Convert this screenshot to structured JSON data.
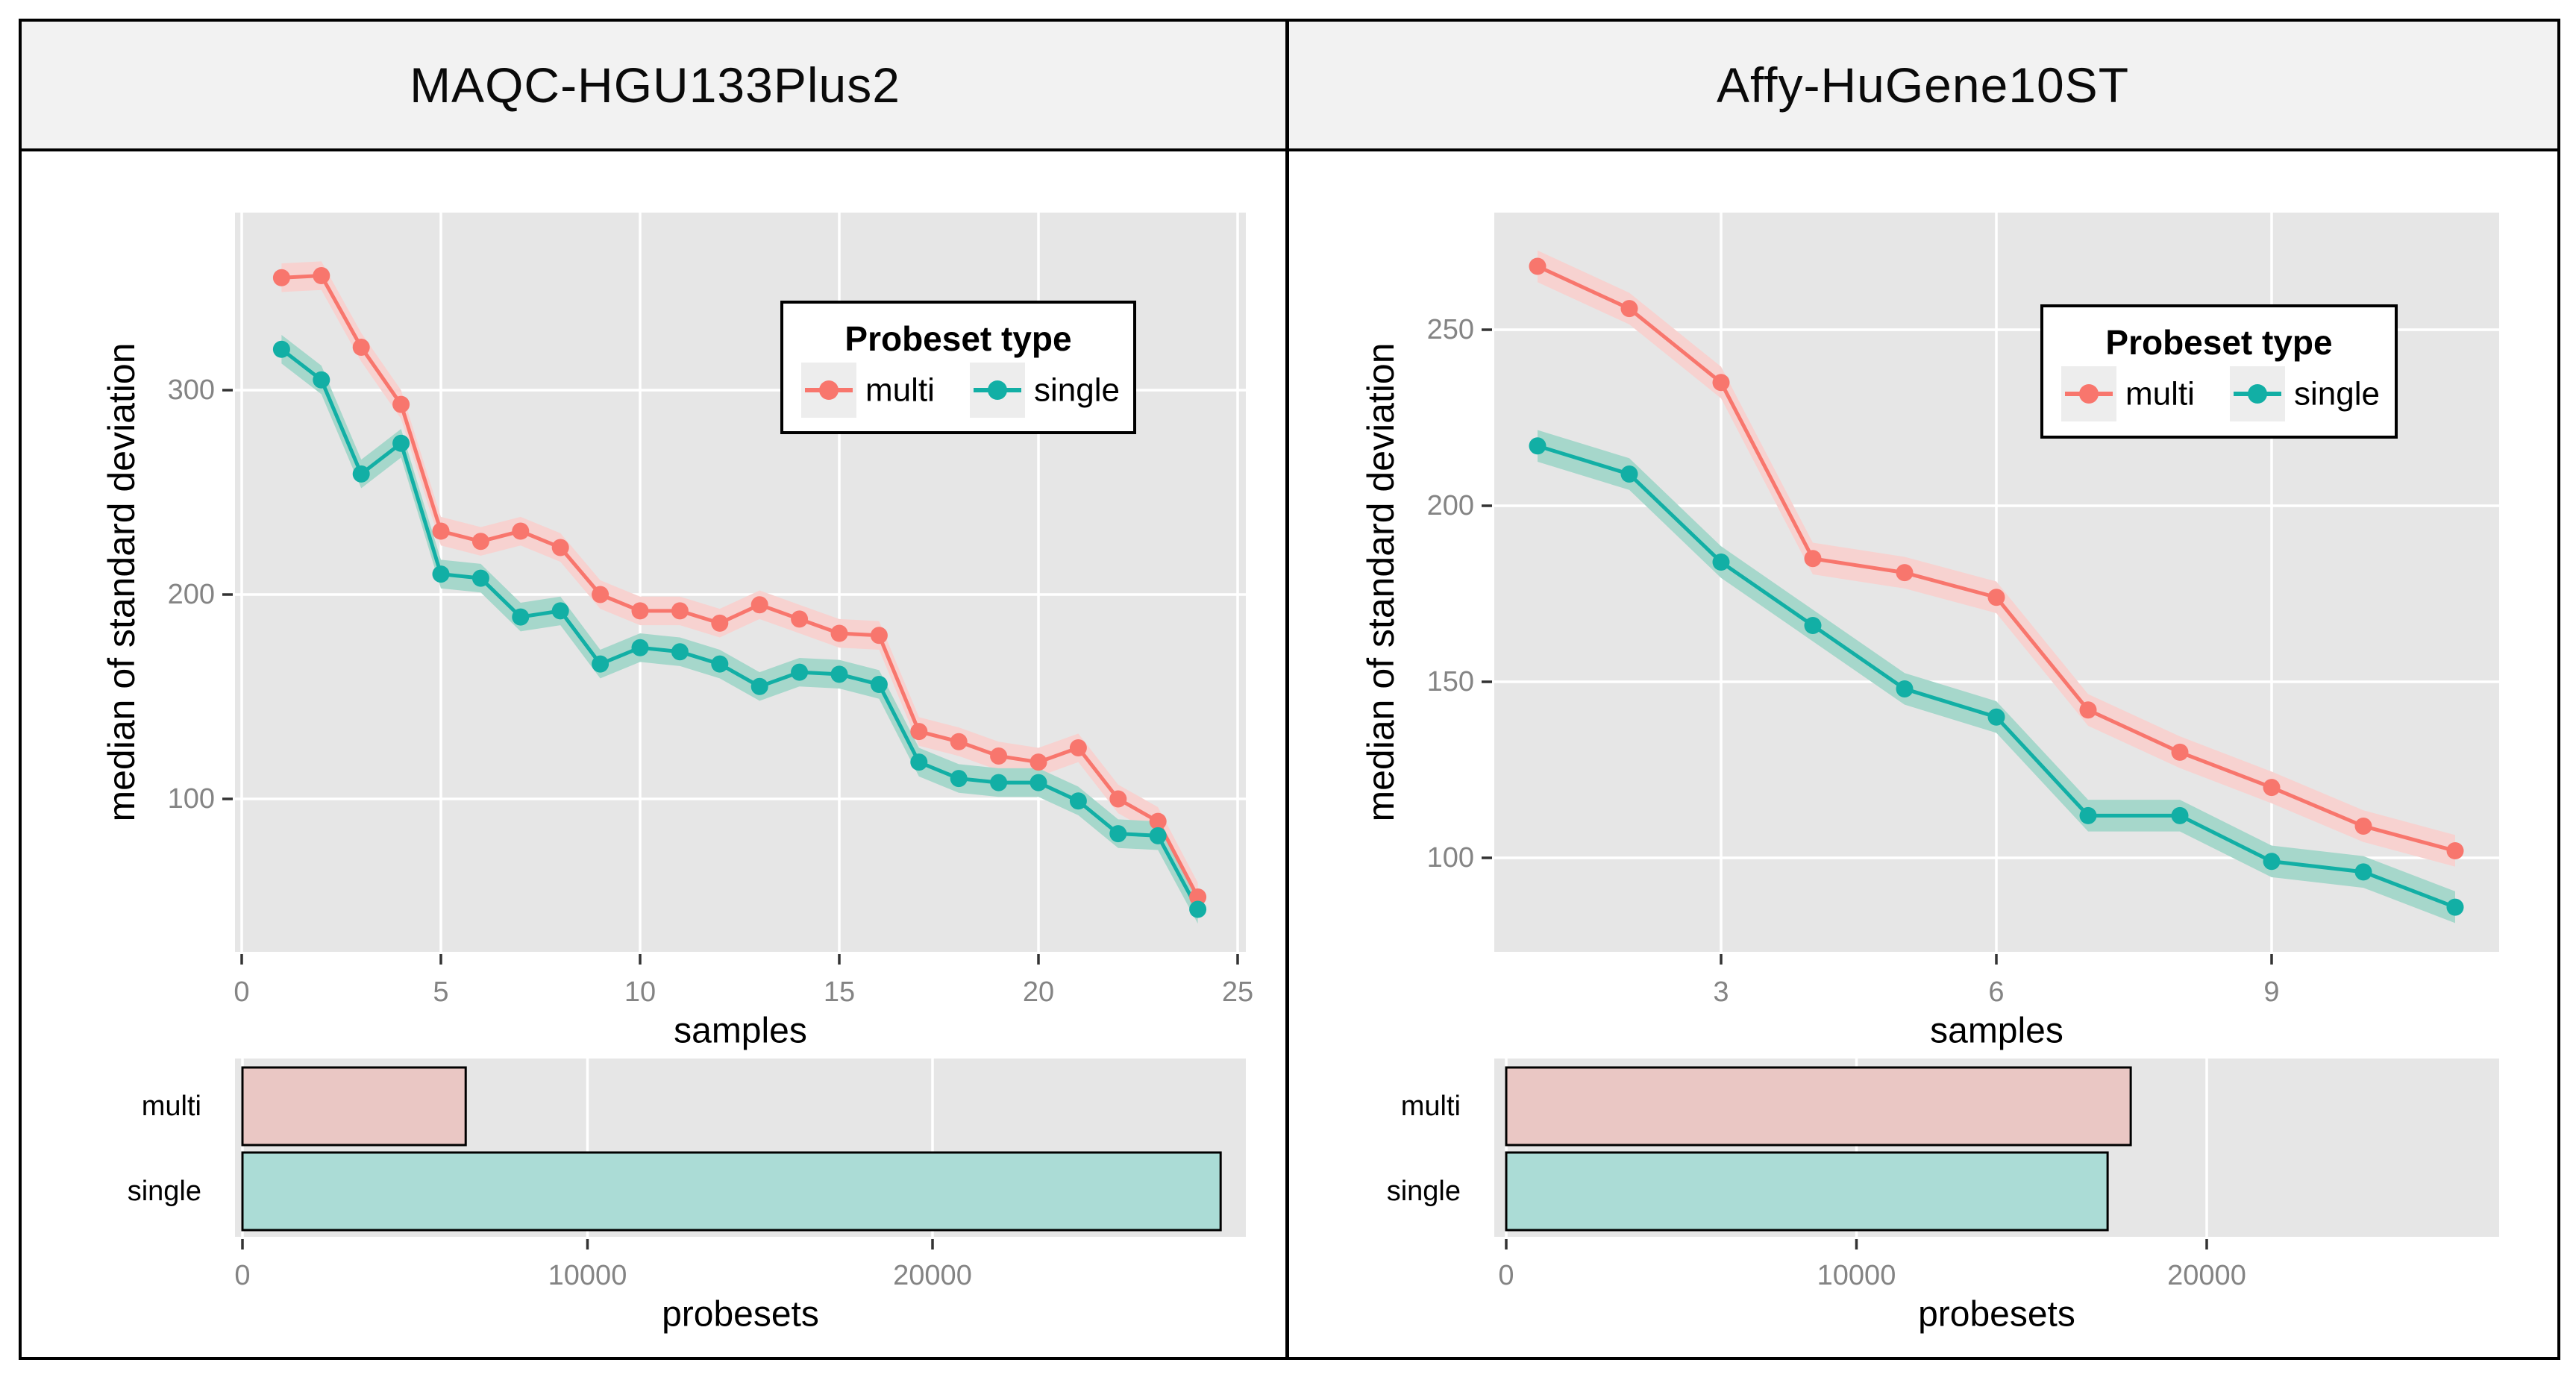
{
  "panels": [
    {
      "title": "MAQC-HGU133Plus2"
    },
    {
      "title": "Affy-HuGene10ST"
    }
  ],
  "legend": {
    "title": "Probeset  type",
    "items": [
      "multi",
      "single"
    ]
  },
  "colors": {
    "multi": "#F8766D",
    "single": "#12AFA5",
    "multi_ribbon": "#F7D2D0",
    "single_ribbon": "#A6D7CB",
    "multi_bar": "#EAC7C4",
    "single_bar": "#ABDCD6",
    "panel_bg": "#E6E6E6",
    "grid": "#FFFFFF",
    "tick_label": "#848484",
    "tick_mark": "#333333",
    "axis_text": "#000000",
    "title_bg": "#F2F2F2",
    "legend_key_bg": "#EDEDED",
    "frame": "#000000"
  },
  "chart_data": [
    {
      "panel": "MAQC-HGU133Plus2",
      "type": "line",
      "xlabel": "samples",
      "ylabel": "median of standard deviation",
      "x": [
        1,
        2,
        3,
        4,
        5,
        6,
        7,
        8,
        9,
        10,
        11,
        12,
        13,
        14,
        15,
        16,
        17,
        18,
        19,
        20,
        21,
        22,
        23,
        24
      ],
      "series": [
        {
          "name": "multi",
          "values": [
            355,
            356,
            321,
            293,
            231,
            226,
            231,
            223,
            200,
            192,
            192,
            186,
            195,
            188,
            181,
            180,
            133,
            128,
            121,
            118,
            125,
            100,
            89,
            52
          ]
        },
        {
          "name": "single",
          "values": [
            320,
            305,
            259,
            274,
            210,
            208,
            189,
            192,
            166,
            174,
            172,
            166,
            155,
            162,
            161,
            156,
            118,
            110,
            108,
            108,
            99,
            83,
            82,
            46
          ]
        }
      ],
      "ribbon_halfwidth": 7,
      "xticks": [
        0,
        5,
        10,
        15,
        20,
        25
      ],
      "yticks": [
        100,
        200,
        300
      ],
      "xlim": [
        -0.2,
        25.2
      ],
      "ylim": [
        25,
        387
      ],
      "grid": "major-white-on-gray",
      "legend_position": "inside-top-right"
    },
    {
      "panel": "MAQC-HGU133Plus2",
      "type": "bar",
      "orientation": "horizontal",
      "xlabel": "probesets",
      "categories": [
        "multi",
        "single"
      ],
      "values": [
        6470,
        28350
      ],
      "xticks": [
        0,
        10000,
        20000
      ],
      "xlim": [
        0,
        29100
      ]
    },
    {
      "panel": "Affy-HuGene10ST",
      "type": "line",
      "xlabel": "samples",
      "ylabel": "median of standard deviation",
      "x": [
        1,
        2,
        3,
        4,
        5,
        6,
        7,
        8,
        9,
        10,
        11
      ],
      "series": [
        {
          "name": "multi",
          "values": [
            268,
            256,
            235,
            185,
            181,
            174,
            142,
            130,
            120,
            109,
            102
          ]
        },
        {
          "name": "single",
          "values": [
            217,
            209,
            184,
            166,
            148,
            140,
            112,
            112,
            99,
            96,
            86
          ]
        }
      ],
      "ribbon_halfwidth": 4.5,
      "xticks": [
        3,
        6,
        9
      ],
      "yticks": [
        100,
        150,
        200,
        250
      ],
      "xlim": [
        0.53,
        11.45
      ],
      "ylim": [
        73,
        283
      ],
      "grid": "major-white-on-gray",
      "legend_position": "inside-top-right"
    },
    {
      "panel": "Affy-HuGene10ST",
      "type": "bar",
      "orientation": "horizontal",
      "xlabel": "probesets",
      "categories": [
        "multi",
        "single"
      ],
      "values": [
        17830,
        17170
      ],
      "xticks": [
        0,
        10000,
        20000
      ],
      "xlim": [
        0,
        28750
      ]
    }
  ]
}
